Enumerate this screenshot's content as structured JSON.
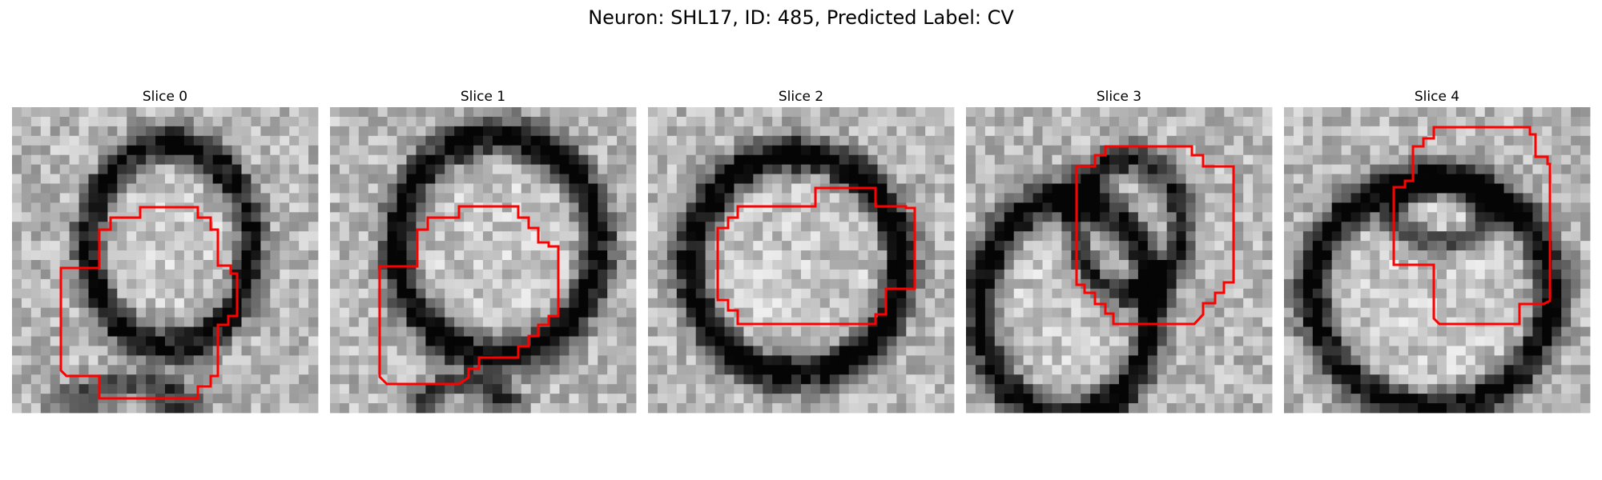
{
  "figure": {
    "title": "Neuron: SHL17, ID: 485, Predicted Label: CV",
    "mask_color": "#ff0000",
    "colormap": "gray",
    "panels": [
      {
        "label": "Slice 0"
      },
      {
        "label": "Slice 1"
      },
      {
        "label": "Slice 2"
      },
      {
        "label": "Slice 3"
      },
      {
        "label": "Slice 4"
      }
    ]
  }
}
